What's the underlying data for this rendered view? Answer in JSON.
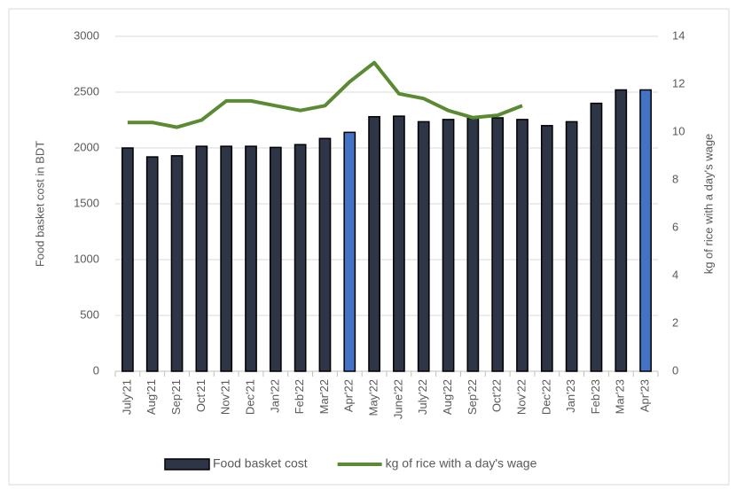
{
  "chart_data": {
    "type": "bar_line",
    "categories": [
      "July'21",
      "Aug'21",
      "Sep'21",
      "Oct'21",
      "Nov'21",
      "Dec'21",
      "Jan'22",
      "Feb'22",
      "Mar'22",
      "Apr'22",
      "May'22",
      "June'22",
      "July'22",
      "Aug'22",
      "Sep'22",
      "Oct'22",
      "Nov'22",
      "Dec'22",
      "Jan'23",
      "Feb'23",
      "Mar'23",
      "Apr'23"
    ],
    "series": [
      {
        "name": "Food basket cost",
        "type": "bar",
        "color": "#2e3546",
        "colors": [
          "#2e3546",
          "#2e3546",
          "#2e3546",
          "#2e3546",
          "#2e3546",
          "#2e3546",
          "#2e3546",
          "#2e3546",
          "#2e3546",
          "#4472c4",
          "#2e3546",
          "#2e3546",
          "#2e3546",
          "#2e3546",
          "#2e3546",
          "#2e3546",
          "#2e3546",
          "#2e3546",
          "#2e3546",
          "#2e3546",
          "#2e3546",
          "#4472c4"
        ],
        "values": [
          2000,
          1920,
          1930,
          2015,
          2015,
          2015,
          2005,
          2030,
          2085,
          2140,
          2280,
          2285,
          2235,
          2255,
          2265,
          2270,
          2255,
          2200,
          2235,
          2400,
          2520,
          2520
        ]
      },
      {
        "name": "kg of rice with a day's wage",
        "type": "line",
        "axis": "y2",
        "color": "#5a8a32",
        "values": [
          10.4,
          10.4,
          10.2,
          10.5,
          11.3,
          11.3,
          11.1,
          10.9,
          11.1,
          12.1,
          12.9,
          11.6,
          11.4,
          10.9,
          10.6,
          10.7,
          11.1,
          null,
          null,
          null,
          null,
          null
        ]
      }
    ],
    "ylabel": "Food basket cost in BDT",
    "y2label": "kg of rice with a day's wage",
    "ylim": [
      0,
      3000
    ],
    "yticks": [
      0,
      500,
      1000,
      1500,
      2000,
      2500,
      3000
    ],
    "y2lim": [
      0,
      14
    ],
    "y2ticks": [
      0,
      2,
      4,
      6,
      8,
      10,
      12,
      14
    ],
    "grid": true,
    "legend": "bottom"
  }
}
